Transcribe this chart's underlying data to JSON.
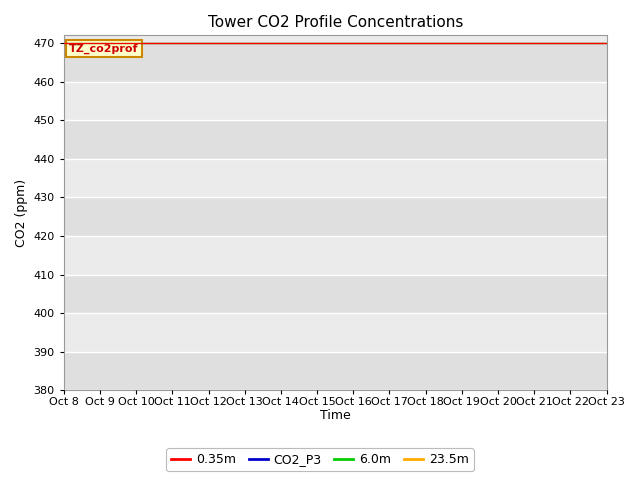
{
  "title": "Tower CO2 Profile Concentrations",
  "xlabel": "Time",
  "ylabel": "CO2 (ppm)",
  "ylim": [
    380,
    472
  ],
  "yticks": [
    380,
    390,
    400,
    410,
    420,
    430,
    440,
    450,
    460,
    470
  ],
  "xtick_labels": [
    "Oct 8",
    "Oct 9",
    "Oct 10",
    "Oct 11",
    "Oct 12",
    "Oct 13",
    "Oct 14",
    "Oct 15",
    "Oct 16",
    "Oct 17",
    "Oct 18",
    "Oct 19",
    "Oct 20",
    "Oct 21",
    "Oct 22",
    "Oct 23"
  ],
  "annotation_text": "TZ_co2prof",
  "annotation_bg": "#ffffcc",
  "annotation_border": "#cc8800",
  "fig_bg": "#ffffff",
  "plot_bg": "#ebebeb",
  "band_bg": "#d8d8d8",
  "legend_entries": [
    "0.35m",
    "CO2_P3",
    "6.0m",
    "23.5m"
  ],
  "legend_colors": [
    "#ff0000",
    "#0000cc",
    "#00cc00",
    "#ffaa00"
  ],
  "line_width": 0.9,
  "n_points": 720,
  "seed": 7
}
